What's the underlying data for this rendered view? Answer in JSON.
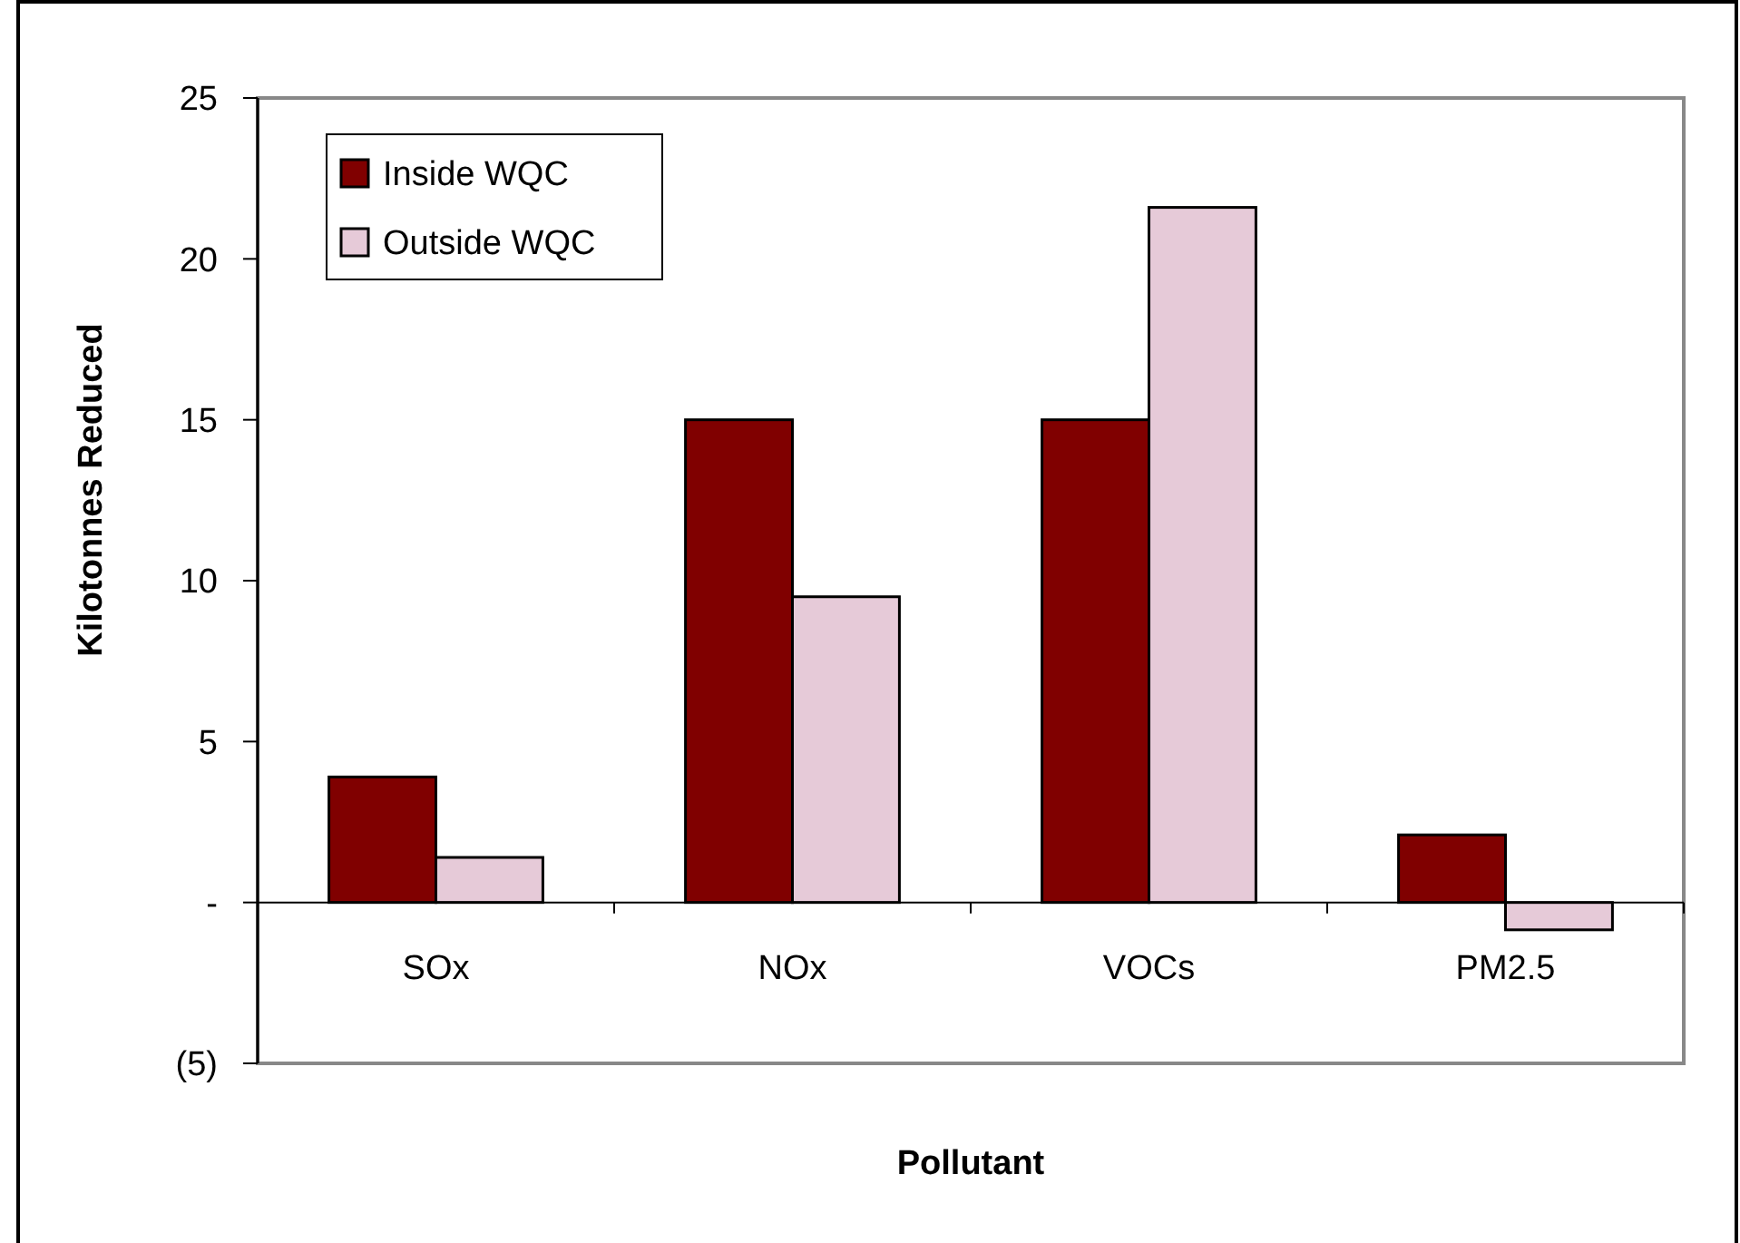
{
  "chart_data": {
    "type": "bar",
    "xlabel": "Pollutant",
    "ylabel": "Kilotonnes Reduced",
    "categories": [
      "SOx",
      "NOx",
      "VOCs",
      "PM2.5"
    ],
    "series": [
      {
        "name": "Inside WQC",
        "color": "#800000",
        "values": [
          3.9,
          15,
          15,
          2.1
        ]
      },
      {
        "name": "Outside WQC",
        "color": "#e6cad8",
        "values": [
          1.4,
          9.5,
          21.6,
          -0.85
        ]
      }
    ],
    "ylim": [
      -5,
      25
    ],
    "yticks": [
      {
        "value": -5,
        "label": "(5)"
      },
      {
        "value": 0,
        "label": "-"
      },
      5,
      10,
      15,
      20,
      25
    ],
    "grid": false,
    "legend": "top left"
  }
}
